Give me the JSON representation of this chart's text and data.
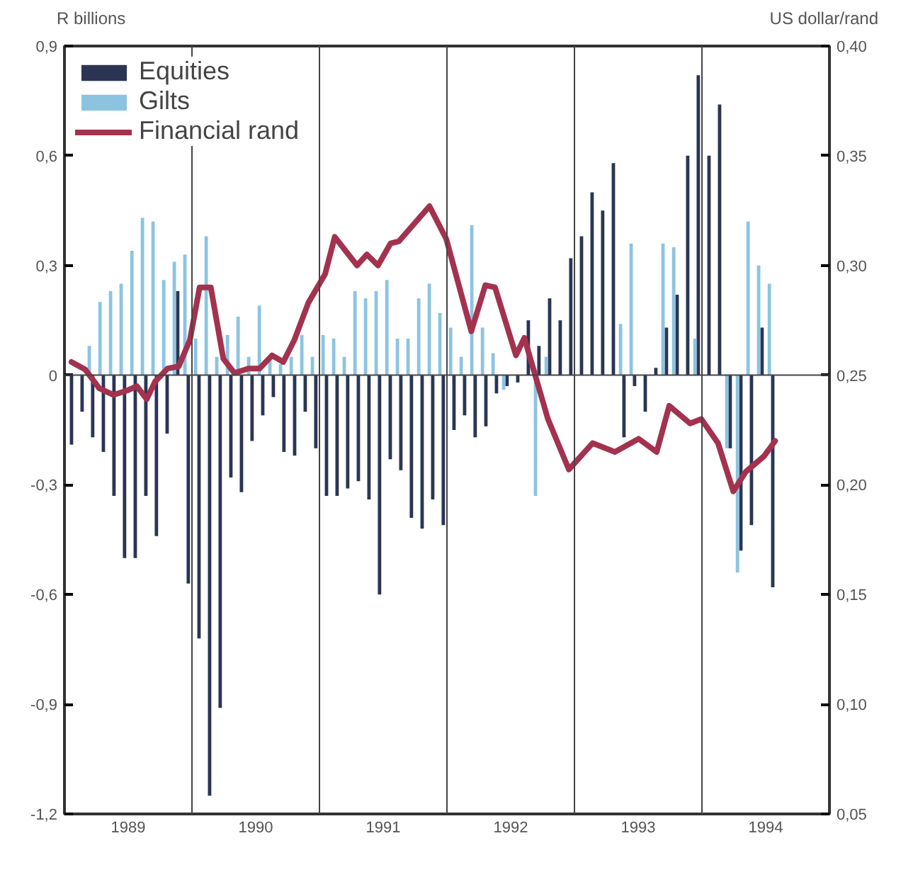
{
  "chart_data": {
    "type": "bar",
    "ylabel": "R billions",
    "y2label": "US dollar/rand",
    "x": [
      1989.042,
      1989.125,
      1989.208,
      1989.292,
      1989.375,
      1989.458,
      1989.542,
      1989.625,
      1989.708,
      1989.792,
      1989.875,
      1989.958,
      1990.042,
      1990.125,
      1990.208,
      1990.292,
      1990.375,
      1990.458,
      1990.542,
      1990.625,
      1990.708,
      1990.792,
      1990.875,
      1990.958,
      1991.042,
      1991.125,
      1991.208,
      1991.292,
      1991.375,
      1991.458,
      1991.542,
      1991.625,
      1991.708,
      1991.792,
      1991.875,
      1991.958,
      1992.042,
      1992.125,
      1992.208,
      1992.292,
      1992.375,
      1992.458,
      1992.542,
      1992.625,
      1992.708,
      1992.792,
      1992.875,
      1992.958,
      1993.042,
      1993.125,
      1993.208,
      1993.292,
      1993.375,
      1993.458,
      1993.542,
      1993.625,
      1993.708,
      1993.792,
      1993.875,
      1993.958,
      1994.042,
      1994.125,
      1994.208,
      1994.292,
      1994.375,
      1994.458,
      1994.542
    ],
    "series": [
      {
        "name": "Equities",
        "color": "#2b3553",
        "values": [
          -0.19,
          -0.1,
          -0.17,
          -0.21,
          -0.33,
          -0.5,
          -0.5,
          -0.33,
          -0.44,
          -0.16,
          0.23,
          -0.57,
          -0.72,
          -1.15,
          -0.91,
          -0.28,
          -0.32,
          -0.18,
          -0.11,
          -0.06,
          -0.21,
          -0.22,
          -0.1,
          -0.2,
          -0.33,
          -0.33,
          -0.31,
          -0.29,
          -0.34,
          -0.6,
          -0.23,
          -0.26,
          -0.39,
          -0.42,
          -0.34,
          -0.41,
          -0.15,
          -0.11,
          -0.17,
          -0.14,
          -0.05,
          -0.03,
          -0.02,
          0.15,
          0.08,
          0.21,
          0.15,
          0.32,
          0.38,
          0.5,
          0.45,
          0.58,
          -0.17,
          -0.03,
          -0.1,
          0.02,
          0.13,
          0.22,
          0.6,
          0.82,
          0.6,
          0.74,
          -0.2,
          -0.48,
          -0.41,
          0.13,
          -0.58
        ]
      },
      {
        "name": "Gilts",
        "color": "#8cc4e0",
        "values": [
          null,
          null,
          0.08,
          0.2,
          0.23,
          0.25,
          0.34,
          0.43,
          0.42,
          0.26,
          0.31,
          0.33,
          0.1,
          0.38,
          0.05,
          0.11,
          0.16,
          0.05,
          0.19,
          0.05,
          0.03,
          0.05,
          0.11,
          0.05,
          0.11,
          0.1,
          0.05,
          0.23,
          0.21,
          0.23,
          0.26,
          0.1,
          0.1,
          0.21,
          0.25,
          0.17,
          0.13,
          0.05,
          0.41,
          0.13,
          0.06,
          -0.04,
          null,
          null,
          -0.33,
          0.05,
          null,
          null,
          null,
          null,
          null,
          null,
          0.14,
          0.36,
          null,
          null,
          0.36,
          0.35,
          null,
          0.1,
          null,
          null,
          -0.2,
          -0.54,
          0.42,
          0.3,
          0.25
        ]
      },
      {
        "name": "Financial rand",
        "type": "line",
        "axis": "y2",
        "color": "#a3324f",
        "x": [
          1989.055,
          1989.164,
          1989.273,
          1989.383,
          1989.492,
          1989.568,
          1989.645,
          1989.71,
          1989.809,
          1989.896,
          1989.984,
          1990.06,
          1990.148,
          1990.246,
          1990.333,
          1990.443,
          1990.53,
          1990.628,
          1990.716,
          1990.803,
          1990.913,
          1991.044,
          1991.12,
          1991.295,
          1991.372,
          1991.459,
          1991.557,
          1991.623,
          1991.863,
          1991.995,
          1992.191,
          1992.301,
          1992.377,
          1992.541,
          1992.607,
          1992.792,
          1992.956,
          1993.142,
          1993.317,
          1993.503,
          1993.645,
          1993.743,
          1993.907,
          1993.995,
          1994.126,
          1994.246,
          1994.344,
          1994.486,
          1994.574
        ],
        "values": [
          0.256,
          0.2525,
          0.244,
          0.241,
          0.243,
          0.245,
          0.239,
          0.247,
          0.253,
          0.254,
          0.266,
          0.29,
          0.29,
          0.2575,
          0.251,
          0.253,
          0.253,
          0.259,
          0.256,
          0.266,
          0.283,
          0.296,
          0.313,
          0.3,
          0.305,
          0.3,
          0.31,
          0.311,
          0.327,
          0.312,
          0.27,
          0.291,
          0.29,
          0.259,
          0.267,
          0.23,
          0.207,
          0.219,
          0.215,
          0.221,
          0.215,
          0.236,
          0.228,
          0.23,
          0.219,
          0.197,
          0.206,
          0.213,
          0.22
        ]
      }
    ],
    "xlim": [
      1989,
      1995
    ],
    "xticks": [
      {
        "value": 1989.5,
        "label": "1989"
      },
      {
        "value": 1990.5,
        "label": "1990"
      },
      {
        "value": 1991.5,
        "label": "1991"
      },
      {
        "value": 1992.5,
        "label": "1992"
      },
      {
        "value": 1993.5,
        "label": "1993"
      },
      {
        "value": 1994.5,
        "label": "1994"
      }
    ],
    "ylim": [
      -1.2,
      0.9
    ],
    "yticks": [
      {
        "value": -1.2,
        "label": "-1,2"
      },
      {
        "value": -0.9,
        "label": "-0,9"
      },
      {
        "value": -0.6,
        "label": "-0,6"
      },
      {
        "value": -0.3,
        "label": "-0,3"
      },
      0,
      {
        "value": 0.3,
        "label": "0,3"
      },
      {
        "value": 0.6,
        "label": "0,6"
      },
      {
        "value": 0.9,
        "label": "0,9"
      }
    ],
    "y2lim": [
      0.05,
      0.4
    ],
    "y2ticks": [
      {
        "value": 0.05,
        "label": "0,05"
      },
      {
        "value": 0.1,
        "label": "0,10"
      },
      {
        "value": 0.15,
        "label": "0,15"
      },
      {
        "value": 0.2,
        "label": "0,20"
      },
      {
        "value": 0.25,
        "label": "0,25"
      },
      {
        "value": 0.3,
        "label": "0,30"
      },
      {
        "value": 0.35,
        "label": "0,35"
      },
      {
        "value": 0.4,
        "label": "0,40"
      }
    ],
    "ref_lines": [
      {
        "axis": "x",
        "value": 1990
      },
      {
        "axis": "x",
        "value": 1991
      },
      {
        "axis": "x",
        "value": 1992
      },
      {
        "axis": "x",
        "value": 1993
      },
      {
        "axis": "x",
        "value": 1994
      },
      {
        "axis": "y",
        "value": 0
      }
    ],
    "legend": "top left",
    "grid": false
  }
}
